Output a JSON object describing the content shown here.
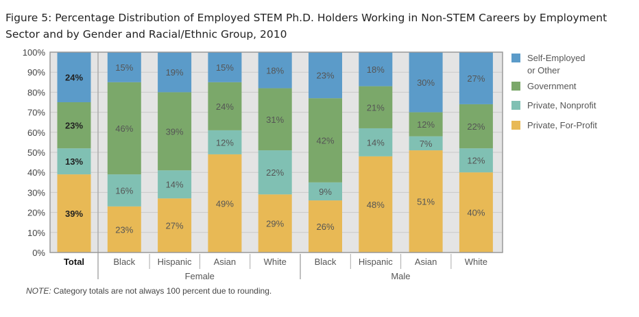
{
  "title": "Figure 5: Percentage Distribution of Employed STEM Ph.D. Holders Working in Non-STEM Careers by Employment Sector and by Gender and Racial/Ethnic Group, 2010",
  "note_label": "NOTE:",
  "note_text": " Category totals are not always 100 percent due to rounding.",
  "colors": {
    "self_employed": "#5b9bc9",
    "government": "#7ba86a",
    "nonprofit": "#80c0b3",
    "forprofit": "#e8b955",
    "plot_bg": "#e4e4e4"
  },
  "chart_data": {
    "type": "bar",
    "stacked": true,
    "title": "Figure 5: Percentage Distribution of Employed STEM Ph.D. Holders Working in Non-STEM Careers by Employment Sector and by Gender and Racial/Ethnic Group, 2010",
    "ylim": [
      0,
      100
    ],
    "yticks": [
      "0%",
      "10%",
      "20%",
      "30%",
      "40%",
      "50%",
      "60%",
      "70%",
      "80%",
      "90%",
      "100%"
    ],
    "categories": [
      "Total",
      "Black",
      "Hispanic",
      "Asian",
      "White",
      "Black",
      "Hispanic",
      "Asian",
      "White"
    ],
    "groups": [
      {
        "name": "Female",
        "categories": [
          1,
          2,
          3,
          4
        ]
      },
      {
        "name": "Male",
        "categories": [
          5,
          6,
          7,
          8
        ]
      }
    ],
    "legend_position": "right",
    "series": [
      {
        "name": "Private, For-Profit",
        "key": "forprofit",
        "values": [
          39,
          23,
          27,
          49,
          29,
          26,
          48,
          51,
          40
        ]
      },
      {
        "name": "Private, Nonprofit",
        "key": "nonprofit",
        "values": [
          13,
          16,
          14,
          12,
          22,
          9,
          14,
          7,
          12
        ]
      },
      {
        "name": "Government",
        "key": "government",
        "values": [
          23,
          46,
          39,
          24,
          31,
          42,
          21,
          12,
          22
        ]
      },
      {
        "name": "Self-Employed or Other",
        "key": "self_employed",
        "values": [
          24,
          15,
          19,
          15,
          18,
          23,
          18,
          30,
          27
        ]
      }
    ],
    "legend": [
      {
        "key": "self_employed",
        "lines": [
          "Self-Employed",
          "or Other"
        ]
      },
      {
        "key": "government",
        "lines": [
          "Government"
        ]
      },
      {
        "key": "nonprofit",
        "lines": [
          "Private, Nonprofit"
        ]
      },
      {
        "key": "forprofit",
        "lines": [
          "Private, For-Profit"
        ]
      }
    ]
  }
}
